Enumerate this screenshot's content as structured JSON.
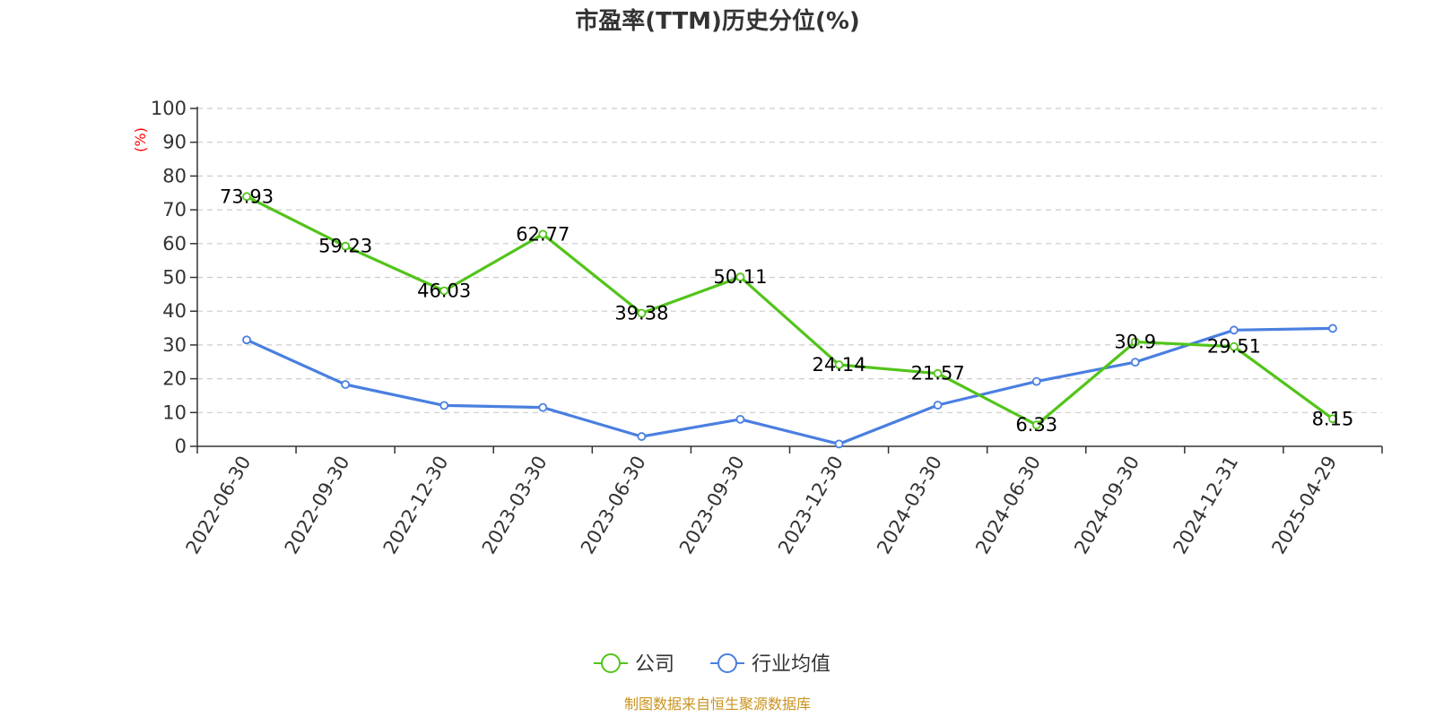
{
  "chart_data": {
    "type": "line",
    "title": "市盈率(TTM)历史分位(%)",
    "ylabel": "(%)",
    "ylim": [
      0,
      100
    ],
    "yticks": [
      0,
      10,
      20,
      30,
      40,
      50,
      60,
      70,
      80,
      90,
      100
    ],
    "grid": true,
    "legend_position": "bottom",
    "categories": [
      "2022-06-30",
      "2022-09-30",
      "2022-12-30",
      "2023-03-30",
      "2023-06-30",
      "2023-09-30",
      "2023-12-30",
      "2024-03-30",
      "2024-06-30",
      "2024-09-30",
      "2024-12-31",
      "2025-04-29"
    ],
    "series": [
      {
        "name": "公司",
        "color": "#52c41a",
        "show_labels": true,
        "values": [
          73.93,
          59.23,
          46.03,
          62.77,
          39.38,
          50.11,
          24.14,
          21.57,
          6.33,
          30.9,
          29.51,
          8.15
        ]
      },
      {
        "name": "行业均值",
        "color": "#4a7fe0",
        "show_labels": false,
        "values": [
          31.5,
          18.3,
          12.1,
          11.5,
          2.9,
          8.0,
          0.7,
          12.2,
          19.2,
          24.9,
          34.4,
          34.9
        ]
      }
    ],
    "source": "制图数据来自恒生聚源数据库"
  }
}
